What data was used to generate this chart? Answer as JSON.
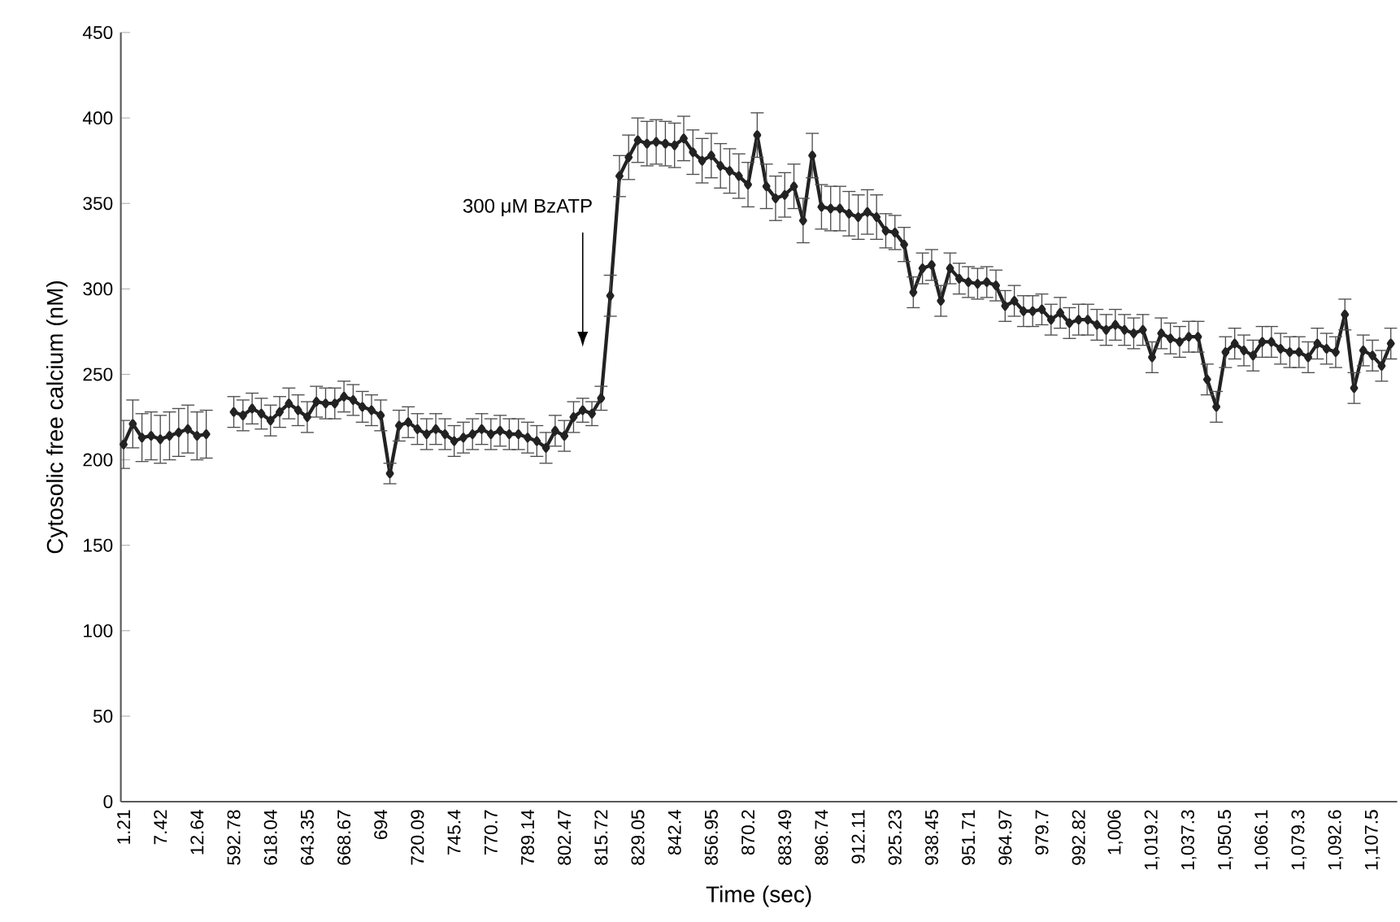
{
  "chart_data": {
    "type": "line",
    "xlabel": "Time (sec)",
    "ylabel": "Cytosolic free calcium (nM)",
    "categories": [
      "1.21",
      null,
      null,
      null,
      "7.42",
      null,
      null,
      null,
      "12.64",
      null,
      null,
      null,
      "592.78",
      null,
      null,
      null,
      "618.04",
      null,
      null,
      null,
      "643.35",
      null,
      null,
      null,
      "668.67",
      null,
      null,
      null,
      "694",
      null,
      null,
      null,
      "720.09",
      null,
      null,
      null,
      "745.4",
      null,
      null,
      null,
      "770.7",
      null,
      null,
      null,
      "789.14",
      null,
      null,
      null,
      "802.47",
      null,
      null,
      null,
      "815.72",
      null,
      null,
      null,
      "829.05",
      null,
      null,
      null,
      "842.4",
      null,
      null,
      null,
      "856.95",
      null,
      null,
      null,
      "870.2",
      null,
      null,
      null,
      "883.49",
      null,
      null,
      null,
      "896.74",
      null,
      null,
      null,
      "912.11",
      null,
      null,
      null,
      "925.23",
      null,
      null,
      null,
      "938.45",
      null,
      null,
      null,
      "951.71",
      null,
      null,
      null,
      "964.97",
      null,
      null,
      null,
      "979.7",
      null,
      null,
      null,
      "992.82",
      null,
      null,
      null,
      "1,006",
      null,
      null,
      null,
      "1,019.2",
      null,
      null,
      null,
      "1,037.3",
      null,
      null,
      null,
      "1,050.5",
      null,
      null,
      null,
      "1,066.1",
      null,
      null,
      null,
      "1,079.3",
      null,
      null,
      null,
      "1,092.6",
      null,
      null,
      null,
      "1,107.5",
      null,
      null
    ],
    "values": [
      209,
      221,
      213,
      214,
      212,
      214,
      216,
      218,
      214,
      215,
      null,
      null,
      228,
      226,
      230,
      227,
      223,
      228,
      233,
      229,
      225,
      234,
      233,
      233,
      237,
      235,
      231,
      229,
      226,
      192,
      220,
      222,
      218,
      215,
      218,
      215,
      211,
      213,
      215,
      218,
      215,
      217,
      215,
      215,
      213,
      211,
      207,
      217,
      214,
      225,
      229,
      227,
      236,
      296,
      366,
      377,
      387,
      385,
      386,
      385,
      384,
      388,
      380,
      375,
      378,
      372,
      369,
      366,
      361,
      390,
      360,
      353,
      355,
      360,
      340,
      378,
      348,
      347,
      347,
      344,
      342,
      345,
      342,
      334,
      333,
      326,
      298,
      312,
      314,
      293,
      312,
      306,
      304,
      303,
      304,
      302,
      290,
      293,
      287,
      287,
      288,
      282,
      286,
      280,
      282,
      282,
      279,
      276,
      279,
      276,
      274,
      276,
      260,
      274,
      271,
      269,
      272,
      272,
      247,
      231,
      263,
      268,
      264,
      261,
      269,
      269,
      265,
      263,
      263,
      260,
      268,
      265,
      263,
      285,
      242,
      264,
      261,
      255,
      268
    ],
    "errors": [
      14,
      14,
      14,
      14,
      14,
      14,
      14,
      14,
      14,
      14,
      null,
      null,
      9,
      9,
      9,
      9,
      9,
      9,
      9,
      9,
      9,
      9,
      9,
      9,
      9,
      9,
      9,
      9,
      9,
      6,
      9,
      9,
      9,
      9,
      9,
      9,
      9,
      9,
      9,
      9,
      9,
      9,
      9,
      9,
      9,
      9,
      9,
      9,
      9,
      9,
      7,
      7,
      7,
      12,
      12,
      13,
      13,
      13,
      13,
      13,
      13,
      13,
      13,
      13,
      13,
      13,
      13,
      13,
      13,
      13,
      13,
      13,
      13,
      13,
      13,
      13,
      13,
      13,
      13,
      13,
      13,
      13,
      13,
      10,
      10,
      10,
      9,
      9,
      9,
      9,
      9,
      9,
      9,
      9,
      9,
      9,
      9,
      9,
      9,
      9,
      9,
      9,
      9,
      9,
      9,
      9,
      9,
      9,
      9,
      9,
      9,
      9,
      9,
      9,
      9,
      9,
      9,
      9,
      9,
      9,
      9,
      9,
      9,
      9,
      9,
      9,
      9,
      9,
      9,
      9,
      9,
      9,
      9,
      9,
      9,
      9,
      9,
      9,
      9
    ],
    "color": "#222222",
    "marker": "diamond",
    "line_style": "solid",
    "ylim": [
      0,
      450
    ],
    "yticks": [
      0,
      50,
      100,
      150,
      200,
      250,
      300,
      350,
      400,
      450
    ],
    "annotations": [
      "300 μM BzATP"
    ]
  }
}
